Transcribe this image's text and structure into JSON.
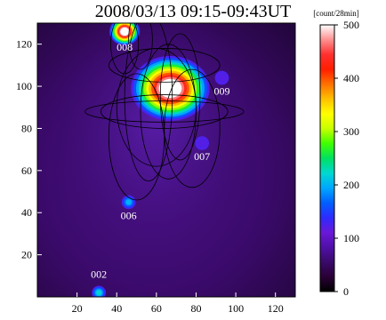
{
  "chart_data": {
    "type": "heatmap",
    "title": "2008/03/13 09:15-09:43UT",
    "xlabel": "",
    "ylabel": "",
    "xlim": [
      0,
      130
    ],
    "ylim": [
      0,
      130
    ],
    "x_ticks": [
      20,
      40,
      60,
      80,
      100,
      120
    ],
    "y_ticks": [
      20,
      40,
      60,
      80,
      100,
      120
    ],
    "colorbar": {
      "unit_label": "[count/28min]",
      "range": [
        0,
        500
      ],
      "ticks": [
        0,
        100,
        200,
        300,
        400,
        500
      ],
      "colormap": [
        "#000000",
        "#2a0036",
        "#3a0a6a",
        "#5010a8",
        "#6a18d8",
        "#2d2bff",
        "#0060ff",
        "#00a8ff",
        "#00d8d0",
        "#00e060",
        "#40ff00",
        "#c8ff00",
        "#ffff00",
        "#ffc000",
        "#ff7000",
        "#ff1e00",
        "#ff3030",
        "#ff9090",
        "#ffffff"
      ]
    },
    "sources": [
      {
        "label": "002",
        "x": 31,
        "y": 2,
        "intensity": 220
      },
      {
        "label": "006",
        "x": 46,
        "y": 45,
        "intensity": 200
      },
      {
        "label": "007",
        "x": 83,
        "y": 73,
        "intensity": 120
      },
      {
        "label": "008",
        "x": 44,
        "y": 126,
        "intensity": 500
      },
      {
        "label": "009",
        "x": 93,
        "y": 104,
        "intensity": 120
      },
      {
        "label": "",
        "x": 67,
        "y": 99,
        "intensity": 500
      }
    ],
    "colors": {
      "background": "#3a0a6a",
      "contour": "#000000"
    }
  }
}
